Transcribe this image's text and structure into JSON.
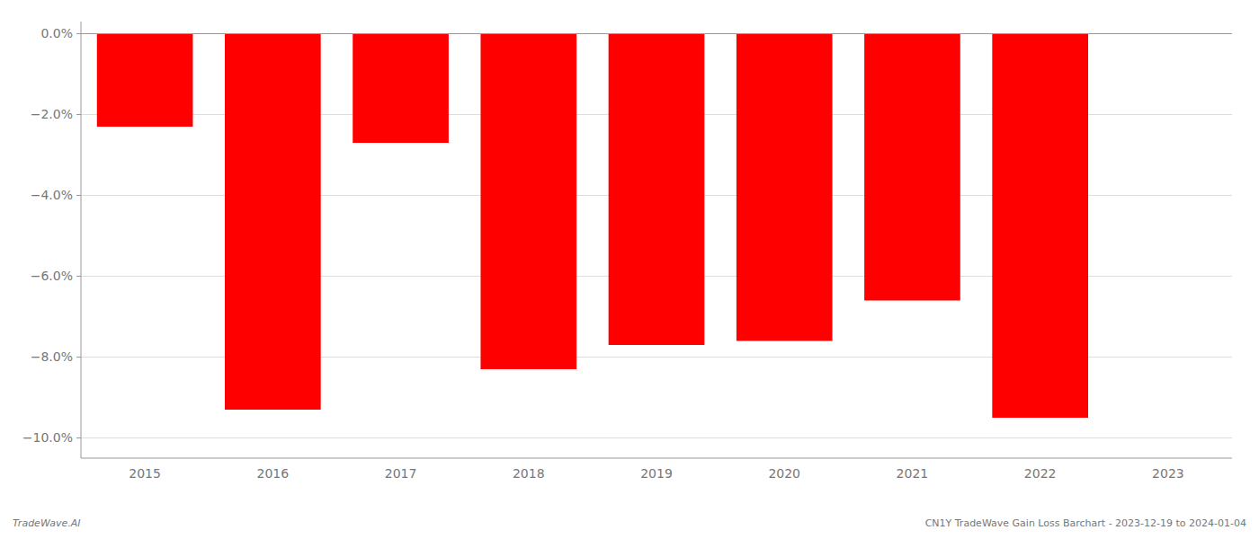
{
  "chart_data": {
    "type": "bar",
    "categories": [
      "2015",
      "2016",
      "2017",
      "2018",
      "2019",
      "2020",
      "2021",
      "2022",
      "2023"
    ],
    "values": [
      -2.3,
      -9.3,
      -2.7,
      -8.3,
      -7.7,
      -7.6,
      -6.6,
      -9.5,
      0.0
    ],
    "color": "#ff0000",
    "ylim": [
      -10.5,
      0.3
    ],
    "yticks": [
      {
        "value": 0.0,
        "label": "0.0%"
      },
      {
        "value": -2.0,
        "label": "−2.0%"
      },
      {
        "value": -4.0,
        "label": "−4.0%"
      },
      {
        "value": -6.0,
        "label": "−6.0%"
      },
      {
        "value": -8.0,
        "label": "−8.0%"
      },
      {
        "value": -10.0,
        "label": "−10.0%"
      }
    ],
    "grid": true,
    "annotations": [
      "TradeWave.AI",
      "CN1Y TradeWave Gain Loss Barchart - 2023-12-19 to 2024-01-04"
    ]
  }
}
